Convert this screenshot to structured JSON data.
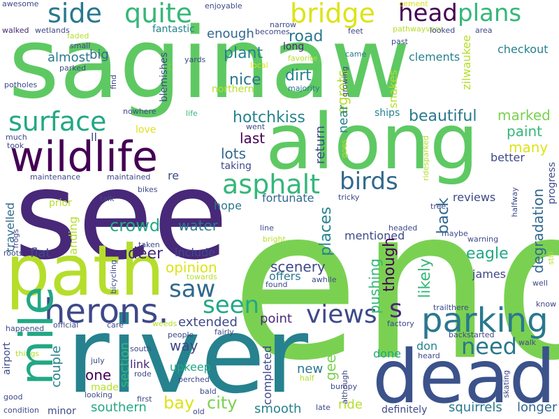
{
  "words": [
    {
      "id": "saginaw",
      "text": "saginaw",
      "color": "#5ec962"
    },
    {
      "id": "end",
      "text": "end",
      "color": "#7ad151"
    },
    {
      "id": "see",
      "text": "see",
      "color": "#482878"
    },
    {
      "id": "river",
      "text": "river",
      "color": "#26828e"
    },
    {
      "id": "along",
      "text": "along",
      "color": "#5ec962"
    },
    {
      "id": "dead",
      "text": "dead",
      "color": "#3b528b"
    },
    {
      "id": "path",
      "text": "path",
      "color": "#b5de2b"
    },
    {
      "id": "wildlife",
      "text": "wildlife",
      "color": "#440154"
    },
    {
      "id": "mile",
      "text": "mile",
      "color": "#22a884"
    },
    {
      "id": "herons",
      "text": "herons.",
      "color": "#3e4989"
    },
    {
      "id": "parking",
      "text": "parking",
      "color": "#2a788e"
    },
    {
      "id": "bridge",
      "text": "bridge",
      "color": "#dde318"
    },
    {
      "id": "quite",
      "text": "quite",
      "color": "#35b779"
    },
    {
      "id": "side",
      "text": "side",
      "color": "#2a788e"
    },
    {
      "id": "head",
      "text": "head",
      "color": "#440154"
    },
    {
      "id": "plans",
      "text": "plans",
      "color": "#35b779"
    },
    {
      "id": "surface",
      "text": "surface",
      "color": "#22a884"
    },
    {
      "id": "asphalt",
      "text": "asphalt",
      "color": "#35b779"
    },
    {
      "id": "birds",
      "text": "birds",
      "color": "#31688e"
    },
    {
      "id": "saw",
      "text": "saw",
      "color": "#31688e"
    },
    {
      "id": "seen",
      "text": "seen",
      "color": "#22a884"
    },
    {
      "id": "views",
      "text": "views",
      "color": "#3e4989"
    },
    {
      "id": "s",
      "text": "s",
      "color": "#482878"
    },
    {
      "id": "need",
      "text": "need",
      "color": "#2a788e"
    },
    {
      "id": "city",
      "text": "city",
      "color": "#7ad151"
    },
    {
      "id": "bay",
      "text": "bay",
      "color": "#dde318"
    },
    {
      "id": "hotchkiss",
      "text": "hotchkiss",
      "color": "#26828e"
    },
    {
      "id": "beautiful",
      "text": "beautiful",
      "color": "#2a788e"
    },
    {
      "id": "crowd",
      "text": "crowd",
      "color": "#22a884"
    },
    {
      "id": "water",
      "text": "water",
      "color": "#2a788e"
    },
    {
      "id": "deer",
      "text": "deer",
      "color": "#482878"
    },
    {
      "id": "eagle",
      "text": "eagle",
      "color": "#22a884"
    },
    {
      "id": "scenery",
      "text": "scenery",
      "color": "#3e4989"
    },
    {
      "id": "opinion",
      "text": "opinion",
      "color": "#dde318"
    },
    {
      "id": "paint",
      "text": "paint",
      "color": "#35b779"
    },
    {
      "id": "marked",
      "text": "marked",
      "color": "#7ad151"
    },
    {
      "id": "many",
      "text": "many",
      "color": "#dde318"
    },
    {
      "id": "nice",
      "text": "nice",
      "color": "#2a788e"
    },
    {
      "id": "plant",
      "text": "plant",
      "color": "#26828e"
    },
    {
      "id": "dirt",
      "text": "dirt",
      "color": "#26828e"
    },
    {
      "id": "road",
      "text": "road",
      "color": "#2a788e"
    },
    {
      "id": "lots",
      "text": "lots",
      "color": "#31688e"
    },
    {
      "id": "last",
      "text": "last",
      "color": "#440154"
    },
    {
      "id": "enough",
      "text": "enough",
      "color": "#31688e"
    },
    {
      "id": "big",
      "text": "big",
      "color": "#31688e"
    },
    {
      "id": "almost",
      "text": "almost",
      "color": "#2a788e"
    },
    {
      "id": "point",
      "text": "point",
      "color": "#482878"
    },
    {
      "id": "extended",
      "text": "extended",
      "color": "#3e4989"
    },
    {
      "id": "way",
      "text": "way",
      "color": "#3e4989"
    },
    {
      "id": "link",
      "text": "link",
      "color": "#482878"
    },
    {
      "id": "one",
      "text": "one",
      "color": "#440154"
    },
    {
      "id": "southern",
      "text": "southern",
      "color": "#22a884"
    },
    {
      "id": "smooth",
      "text": "smooth",
      "color": "#26828e"
    },
    {
      "id": "ride",
      "text": "ride",
      "color": "#b5de2b"
    },
    {
      "id": "new",
      "text": "new",
      "color": "#2a788e"
    },
    {
      "id": "squirrels",
      "text": "squirrels",
      "color": "#2a788e"
    },
    {
      "id": "longer",
      "text": "longer",
      "color": "#31688e"
    },
    {
      "id": "definitely",
      "text": "definitely",
      "color": "#3e4989"
    },
    {
      "id": "flat",
      "text": "flat",
      "color": "#3e4989"
    },
    {
      "id": "upkeep",
      "text": "upkeep",
      "color": "#22a884"
    },
    {
      "id": "include",
      "text": "include",
      "color": "#3e4989"
    },
    {
      "id": "james",
      "text": "james",
      "color": "#3e4989"
    },
    {
      "id": "reviews",
      "text": "reviews",
      "color": "#3e4989"
    },
    {
      "id": "mentioned",
      "text": "mentioned",
      "color": "#3e4989"
    },
    {
      "id": "fortunate",
      "text": "fortunate",
      "color": "#31688e"
    },
    {
      "id": "hope",
      "text": "hope",
      "color": "#2a788e"
    },
    {
      "id": "offers",
      "text": "offers",
      "color": "#2a788e"
    },
    {
      "id": "better",
      "text": "better",
      "color": "#3e4989"
    },
    {
      "id": "taking",
      "text": "taking",
      "color": "#3e4989"
    },
    {
      "id": "don",
      "text": "don",
      "color": "#26828e"
    },
    {
      "id": "done",
      "text": "done",
      "color": "#22a884"
    },
    {
      "id": "prior",
      "text": "prior",
      "color": "#b5de2b"
    },
    {
      "id": "love",
      "text": "love",
      "color": "#dde318"
    },
    {
      "id": "ll",
      "text": "ll",
      "color": "#3e4989"
    },
    {
      "id": "re",
      "text": "re",
      "color": "#3e4989"
    },
    {
      "id": "t",
      "text": "t",
      "color": "#7ad151"
    },
    {
      "id": "northern",
      "text": "northern",
      "color": "#b5de2b"
    },
    {
      "id": "clements",
      "text": "clements",
      "color": "#26828e"
    },
    {
      "id": "checkout",
      "text": "checkout",
      "color": "#26828e"
    },
    {
      "id": "fantastic",
      "text": "fantastic",
      "color": "#26828e"
    },
    {
      "id": "ships",
      "text": "ships",
      "color": "#26828e"
    },
    {
      "id": "long",
      "text": "long",
      "color": "#482878"
    },
    {
      "id": "yards",
      "text": "yards",
      "color": "#3e4989"
    },
    {
      "id": "favorite",
      "text": "favorite",
      "color": "#b5de2b"
    },
    {
      "id": "came",
      "text": "came",
      "color": "#2a788e"
    },
    {
      "id": "majority",
      "text": "majority",
      "color": "#2a788e"
    },
    {
      "id": "local",
      "text": "local",
      "color": "#dde318"
    },
    {
      "id": "feet",
      "text": "feet",
      "color": "#3e4989"
    },
    {
      "id": "narrow",
      "text": "narrow",
      "color": "#3e4989"
    },
    {
      "id": "becomes",
      "text": "becomes",
      "color": "#3e4989"
    },
    {
      "id": "pathwayvery",
      "text": "pathwayvery",
      "color": "#b5de2b"
    },
    {
      "id": "looked",
      "text": "looked",
      "color": "#3e4989"
    },
    {
      "id": "area",
      "text": "area",
      "color": "#3e4989"
    },
    {
      "id": "past",
      "text": "past",
      "color": "#3e4989"
    },
    {
      "id": "cement",
      "text": "cement",
      "color": "#dde318"
    },
    {
      "id": "enjoyable",
      "text": "enjoyable",
      "color": "#3e4989"
    },
    {
      "id": "awesome",
      "text": "awesome",
      "color": "#3e4989"
    },
    {
      "id": "walked",
      "text": "walked",
      "color": "#482878"
    },
    {
      "id": "wetlands",
      "text": "wetlands",
      "color": "#3e4989"
    },
    {
      "id": "faded",
      "text": "faded",
      "color": "#b5de2b"
    },
    {
      "id": "small",
      "text": "small",
      "color": "#3e4989"
    },
    {
      "id": "parked",
      "text": "parked",
      "color": "#3e4989"
    },
    {
      "id": "potholes",
      "text": "potholes",
      "color": "#3e4989"
    },
    {
      "id": "nowhere",
      "text": "nowhere",
      "color": "#3e4989"
    },
    {
      "id": "life",
      "text": "life",
      "color": "#35b779"
    },
    {
      "id": "went",
      "text": "went",
      "color": "#3e4989"
    },
    {
      "id": "much",
      "text": "much",
      "color": "#3e4989"
    },
    {
      "id": "took",
      "text": "took",
      "color": "#3e4989"
    },
    {
      "id": "maintenance",
      "text": "maintenance",
      "color": "#3e4989"
    },
    {
      "id": "maintained",
      "text": "maintained",
      "color": "#3e4989"
    },
    {
      "id": "bikes",
      "text": "bikes",
      "color": "#3e4989"
    },
    {
      "id": "talk",
      "text": "talk",
      "color": "#3e4989"
    },
    {
      "id": "roots",
      "text": "roots",
      "color": "#3e4989"
    },
    {
      "id": "taken",
      "text": "taken",
      "color": "#3e4989"
    },
    {
      "id": "towards",
      "text": "towards",
      "color": "#b5de2b"
    },
    {
      "id": "found",
      "text": "found",
      "color": "#3e4989"
    },
    {
      "id": "awhile",
      "text": "awhile",
      "color": "#3e4989"
    },
    {
      "id": "line",
      "text": "line",
      "color": "#3e4989"
    },
    {
      "id": "bright",
      "text": "bright",
      "color": "#b5de2b"
    },
    {
      "id": "headed",
      "text": "headed",
      "color": "#3e4989"
    },
    {
      "id": "maybe",
      "text": "maybe",
      "color": "#3e4989"
    },
    {
      "id": "warning",
      "text": "warning",
      "color": "#3e4989"
    },
    {
      "id": "tricky",
      "text": "tricky",
      "color": "#3e4989"
    },
    {
      "id": "tree",
      "text": "tree",
      "color": "#3e4989"
    },
    {
      "id": "well",
      "text": "well",
      "color": "#3e4989"
    },
    {
      "id": "know",
      "text": "know",
      "color": "#3e4989"
    },
    {
      "id": "trailthere",
      "text": "trailthere",
      "color": "#3e4989"
    },
    {
      "id": "factory",
      "text": "factory",
      "color": "#3e4989"
    },
    {
      "id": "backstarted",
      "text": "backstarted",
      "color": "#3e4989"
    },
    {
      "id": "walk",
      "text": "walk",
      "color": "#3e4989"
    },
    {
      "id": "heard",
      "text": "heard",
      "color": "#3e4989"
    },
    {
      "id": "half",
      "text": "half",
      "color": "#b5de2b"
    },
    {
      "id": "bumpy",
      "text": "bumpy",
      "color": "#3e4989"
    },
    {
      "id": "late",
      "text": "late",
      "color": "#3e4989"
    },
    {
      "id": "happened",
      "text": "happened",
      "color": "#3e4989"
    },
    {
      "id": "official",
      "text": "official",
      "color": "#3e4989"
    },
    {
      "id": "care",
      "text": "care",
      "color": "#3e4989"
    },
    {
      "id": "weeds",
      "text": "weeds",
      "color": "#b5de2b"
    },
    {
      "id": "people",
      "text": "people",
      "color": "#3e4989"
    },
    {
      "id": "fairly",
      "text": "fairly",
      "color": "#3e4989"
    },
    {
      "id": "things",
      "text": "things",
      "color": "#b5de2b"
    },
    {
      "id": "july",
      "text": "july",
      "color": "#3e4989"
    },
    {
      "id": "south",
      "text": "south",
      "color": "#3e4989"
    },
    {
      "id": "rode",
      "text": "rode",
      "color": "#3e4989"
    },
    {
      "id": "perched",
      "text": "perched",
      "color": "#3e4989"
    },
    {
      "id": "bald",
      "text": "bald",
      "color": "#3e4989"
    },
    {
      "id": "made",
      "text": "made",
      "color": "#b5de2b"
    },
    {
      "id": "looking",
      "text": "looking",
      "color": "#3e4989"
    },
    {
      "id": "first",
      "text": "first",
      "color": "#3e4989"
    },
    {
      "id": "good",
      "text": "good",
      "color": "#3e4989"
    },
    {
      "id": "condition",
      "text": "condition",
      "color": "#3e4989"
    },
    {
      "id": "minor",
      "text": "minor",
      "color": "#3e4989"
    },
    {
      "id": "old",
      "text": "old",
      "color": "#3e4989"
    },
    {
      "id": "zilwaukee",
      "text": "zilwaukee",
      "color": "#b5de2b"
    },
    {
      "id": "egrets",
      "text": "egrets",
      "color": "#b5de2b"
    },
    {
      "id": "snakes",
      "text": "snakes",
      "color": "#b5de2b"
    },
    {
      "id": "near",
      "text": "near",
      "color": "#26828e"
    },
    {
      "id": "return",
      "text": "return",
      "color": "#3e4989"
    },
    {
      "id": "places",
      "text": "places",
      "color": "#26828e"
    },
    {
      "id": "pushing",
      "text": "pushing",
      "color": "#35b779"
    },
    {
      "id": "though",
      "text": "though",
      "color": "#440154"
    },
    {
      "id": "likely",
      "text": "likely",
      "color": "#35b779"
    },
    {
      "id": "back",
      "text": "back",
      "color": "#31688e"
    },
    {
      "id": "degradation",
      "text": "degradation",
      "color": "#31688e"
    },
    {
      "id": "progress",
      "text": "progress",
      "color": "#3e4989"
    },
    {
      "id": "ridesparked",
      "text": "ridesparked",
      "color": "#b5de2b"
    },
    {
      "id": "halfway",
      "text": "halfway",
      "color": "#3e4989"
    },
    {
      "id": "still",
      "text": "still",
      "color": "#b5de2b"
    },
    {
      "id": "skating",
      "text": "skating",
      "color": "#3e4989"
    },
    {
      "id": "although",
      "text": "although",
      "color": "#3e4989"
    },
    {
      "id": "geese",
      "text": "geese",
      "color": "#7ad151"
    },
    {
      "id": "completed",
      "text": "completed",
      "color": "#3e4989"
    },
    {
      "id": "goes",
      "text": "goes",
      "color": "#b5de2b"
    },
    {
      "id": "growing",
      "text": "growing",
      "color": "#3e4989"
    },
    {
      "id": "find",
      "text": "find",
      "color": "#3e4989"
    },
    {
      "id": "blemishes",
      "text": "blemishes",
      "color": "#3e4989"
    },
    {
      "id": "couple",
      "text": "couple",
      "color": "#26828e"
    },
    {
      "id": "section",
      "text": "section",
      "color": "#35b779"
    },
    {
      "id": "landing",
      "text": "landing",
      "color": "#b5de2b"
    },
    {
      "id": "travelled",
      "text": "travelled",
      "color": "#31688e"
    },
    {
      "id": "airport",
      "text": "airport",
      "color": "#3e4989"
    },
    {
      "id": "frogs",
      "text": "frogs",
      "color": "#3e4989"
    },
    {
      "id": "bicycling",
      "text": "bicycling",
      "color": "#3e4989"
    }
  ]
}
